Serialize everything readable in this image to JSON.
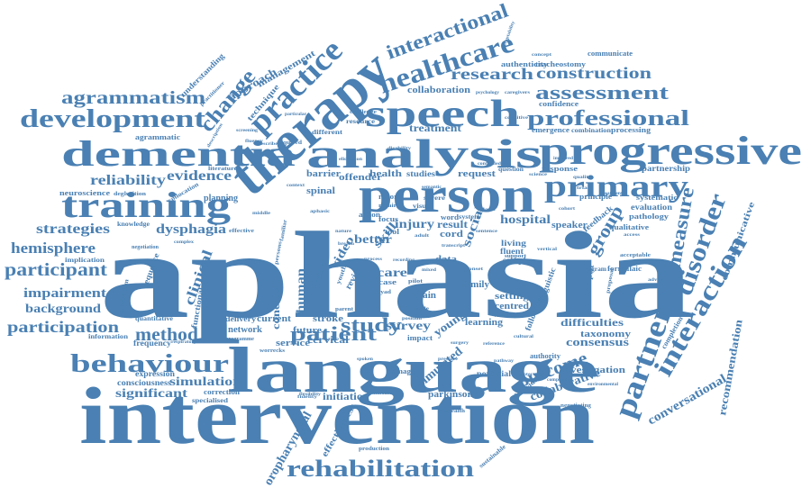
{
  "colors": {
    "word": "#4a80b3",
    "background": "#ffffff"
  },
  "words": {
    "aphasia": "aphasia",
    "intervention": "intervention",
    "language": "language",
    "therapy": "therapy",
    "person": "person",
    "analysis": "analysis",
    "progressive": "progressive",
    "speech": "speech",
    "dementia": "dementia",
    "training": "training",
    "primary": "primary",
    "practice": "practice",
    "development": "development",
    "professional": "professional",
    "healthcare": "healthcare",
    "agrammatism": "agrammatism",
    "change": "change",
    "interactional": "interactional",
    "research": "research",
    "construction": "construction",
    "assessment": "assessment",
    "behaviour": "behaviour",
    "rehabilitation": "rehabilitation",
    "partner": "partner",
    "interaction": "interaction",
    "disorder": "disorder",
    "measure": "measure",
    "patient": "patient",
    "study": "study",
    "method": "method",
    "participant": "participant",
    "participation": "participation",
    "hemisphere": "hemisphere",
    "strategies": "strategies",
    "impairment": "impairment",
    "background": "background",
    "reliability": "reliability",
    "evidence": "evidence",
    "dysphagia": "dysphagia",
    "simulation": "simulation",
    "significant": "significant",
    "outcome": "outcome",
    "group": "group",
    "conversational": "conversational",
    "recommendation": "recommendation",
    "communicative": "communicative",
    "collaborative": "collaborative",
    "simulated": "simulated",
    "survey": "survey",
    "clinical": "clinical",
    "human": "human",
    "conclusion": "conclusion",
    "social": "social",
    "hospital": "hospital",
    "injury": "injury",
    "better": "better",
    "care": "care",
    "video": "video",
    "consensus": "consensus",
    "difficulties": "difficulties",
    "taxonomy": "taxonomy",
    "investigation": "investigation",
    "oropharyngeal": "oropharyngeal",
    "effectiveness": "effectiveness",
    "parkinson": "parkinson",
    "initiation": "initiation",
    "management": "management",
    "approach": "approach",
    "technique": "technique",
    "offender": "offender",
    "treatment": "treatment",
    "barrier": "barrier",
    "health": "health",
    "studies": "studies",
    "request": "request",
    "collaboration": "collaboration",
    "authenticity": "authenticity",
    "communicate": "communicate",
    "tracheostomy": "tracheostomy",
    "confidence": "confidence",
    "emergence": "emergence",
    "combination": "combination",
    "processing": "processing",
    "response": "response",
    "partnership": "partnership",
    "systematic": "systematic",
    "principle": "principle",
    "evaluation": "evaluation",
    "pathology": "pathology",
    "qualitative": "qualitative",
    "speaker": "speaker",
    "feedback": "feedback",
    "acceptable": "acceptable",
    "program": "program",
    "formulaic": "formulaic",
    "therapist": "therapist",
    "proposal": "proposal",
    "completion": "completion",
    "potential": "potential",
    "authority": "authority",
    "individual": "individual",
    "negotiating": "negotiating",
    "sustainable": "sustainable",
    "production": "production",
    "telehealth": "telehealth",
    "damage": "damage",
    "impact": "impact",
    "young": "young",
    "learning": "learning",
    "setting": "setting",
    "centred": "centred",
    "following": "following",
    "linguistic": "linguistic",
    "cervical": "cervical",
    "stroke": "stroke",
    "future": "future",
    "service": "service",
    "network": "network",
    "delivery": "delivery",
    "current": "current",
    "functional": "functional",
    "frequency": "frequency",
    "information": "information",
    "quantitative": "quantitative",
    "expression": "expression",
    "consciousness": "consciousness",
    "correction": "correction",
    "specialised": "specialised",
    "implication": "implication",
    "neuroscience": "neuroscience",
    "deglutition": "deglutition",
    "knowledge": "knowledge",
    "planning": "planning",
    "collocation": "collocation",
    "sequence": "sequence",
    "mechanism": "mechanism",
    "negotiation": "negotiation",
    "agrammatic": "agrammatic",
    "understanding": "understanding",
    "practitioner": "practitioner",
    "acquired": "acquired",
    "different": "different",
    "resource": "resource",
    "challenge": "challenge",
    "spinal": "spinal",
    "cord": "cord",
    "skill": "skill",
    "focus": "focus",
    "report": "report",
    "visual": "visual",
    "severe": "severe",
    "action": "action",
    "system": "system",
    "result": "result",
    "word": "word",
    "data": "data",
    "family": "family",
    "living": "living",
    "fluent": "fluent",
    "sample": "sample",
    "support": "support",
    "review": "review",
    "finding": "finding",
    "brain": "brain",
    "case": "case",
    "youth": "youth",
    "literature": "literature",
    "effective": "effective",
    "familiar": "familiar",
    "persons": "persons",
    "question": "question",
    "controlled": "controlled",
    "psychology": "psychology",
    "caregivers": "caregivers",
    "cognitive": "cognitive",
    "vertical": "vertical",
    "sentence": "sentence",
    "fidelity": "fidelity",
    "programme": "programme",
    "worrecks": "worrecks",
    "respiratory": "respiratory",
    "complex": "complex",
    "middle": "middle",
    "repair": "repair",
    "science": "science",
    "variation": "variation",
    "cultural": "cultural",
    "reference": "reference",
    "pathway": "pathway",
    "protector": "protector",
    "environmental": "environmental",
    "description": "description",
    "fluency": "fluency",
    "describe": "describe",
    "flexibility": "flexibility",
    "concept": "concept",
    "particular": "particular",
    "acceptability": "acceptability",
    "disability": "disability",
    "impaired": "impaired",
    "quality": "quality",
    "treatments": "treatments",
    "adult": "adult",
    "comparison": "comparison",
    "dyad": "dyad",
    "pilot": "pilot",
    "parent": "parent",
    "elicitation": "elicitation",
    "semantic": "semantic",
    "aphasic": "aphasic",
    "context": "context",
    "fragile": "fragile",
    "increase": "increase",
    "pressure": "pressure",
    "surgery": "surgery",
    "spoken": "spoken",
    "dynamic": "dynamic",
    "recording": "recording",
    "tool": "tool",
    "transcript": "transcript",
    "mixed": "mixed",
    "onset": "onset",
    "process": "process",
    "nature": "nature",
    "position": "position",
    "breach": "breach",
    "screening": "screening",
    "cohort": "cohort",
    "trial": "trial",
    "access": "access",
    "advice": "advice"
  }
}
